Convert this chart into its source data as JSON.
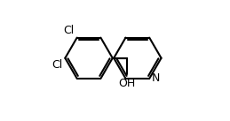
{
  "line_color": "#000000",
  "bg_color": "#ffffff",
  "line_width": 1.5,
  "font_size_atoms": 9,
  "cl_label_1": "Cl",
  "cl_label_2": "Cl",
  "oh_label": "OH",
  "n_label": "N",
  "figsize": [
    2.59,
    1.37
  ],
  "dpi": 100
}
